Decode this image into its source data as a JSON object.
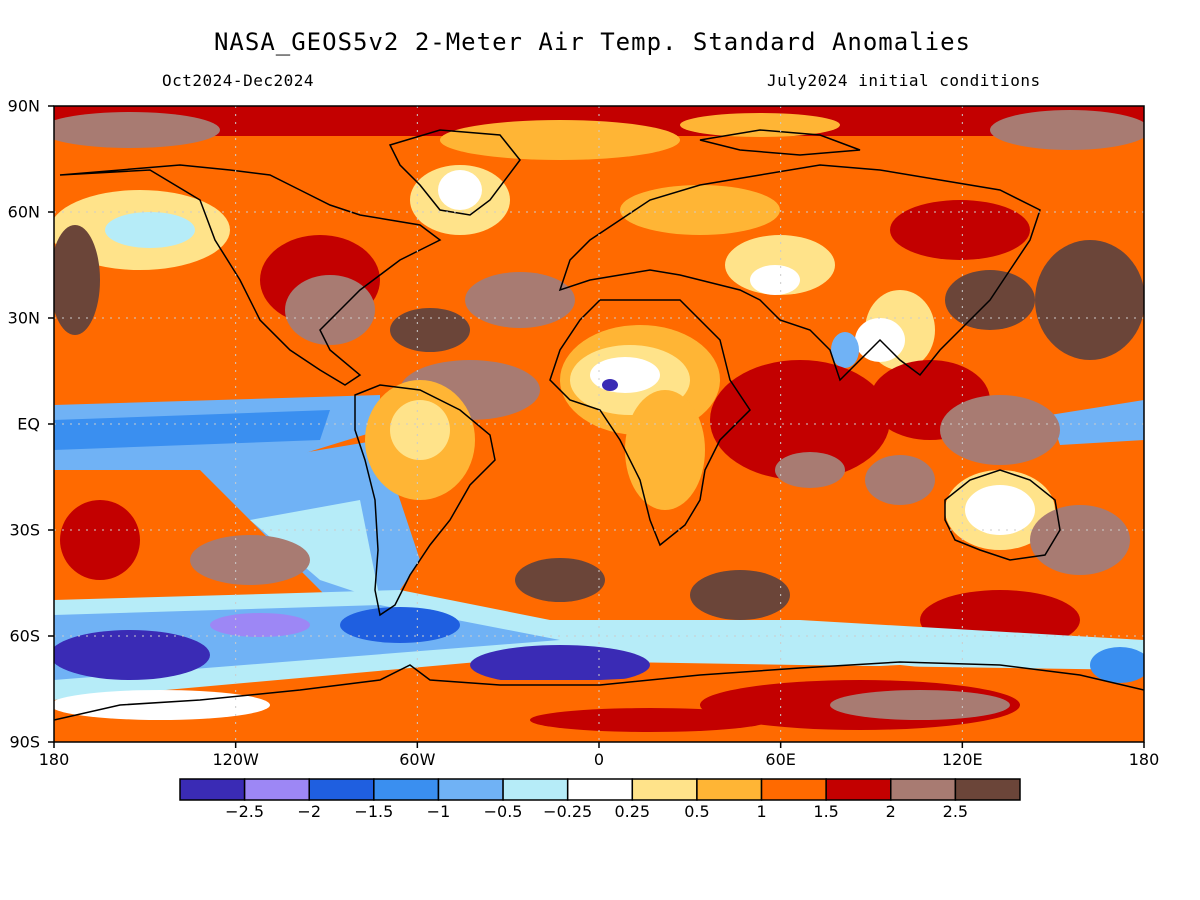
{
  "title": "NASA_GEOS5v2 2-Meter Air Temp. Standard Anomalies",
  "subtitle_left": "Oct2024-Dec2024",
  "subtitle_right": "July2024 initial conditions",
  "map": {
    "lon_range": [
      -180,
      180
    ],
    "lat_range": [
      -90,
      90
    ],
    "lat_labels": [
      "90N",
      "60N",
      "30N",
      "EQ",
      "30S",
      "60S",
      "90S"
    ],
    "lat_values": [
      90,
      60,
      30,
      0,
      -30,
      -60,
      -90
    ],
    "lon_labels": [
      "180",
      "120W",
      "60W",
      "0",
      "60E",
      "120E",
      "180"
    ],
    "lon_values": [
      -180,
      -120,
      -60,
      0,
      60,
      120,
      180
    ],
    "gridlines": true
  },
  "colorbar": {
    "colors": [
      "#3a2bb5",
      "#9d87f5",
      "#1f5fe0",
      "#3a8ff0",
      "#70b2f5",
      "#b6ecf8",
      "#ffffff",
      "#ffe38a",
      "#ffb535",
      "#ff6a00",
      "#c30000",
      "#a87b72",
      "#6b4539"
    ],
    "labels": [
      "-2.5",
      "-2",
      "-1.5",
      "-1",
      "-0.5",
      "-0.25",
      "0.25",
      "0.5",
      "1",
      "1.5",
      "2",
      "2.5"
    ]
  },
  "legend_values": [
    -2.5,
    -2,
    -1.5,
    -1,
    -0.5,
    -0.25,
    0.25,
    0.5,
    1,
    1.5,
    2,
    2.5
  ]
}
